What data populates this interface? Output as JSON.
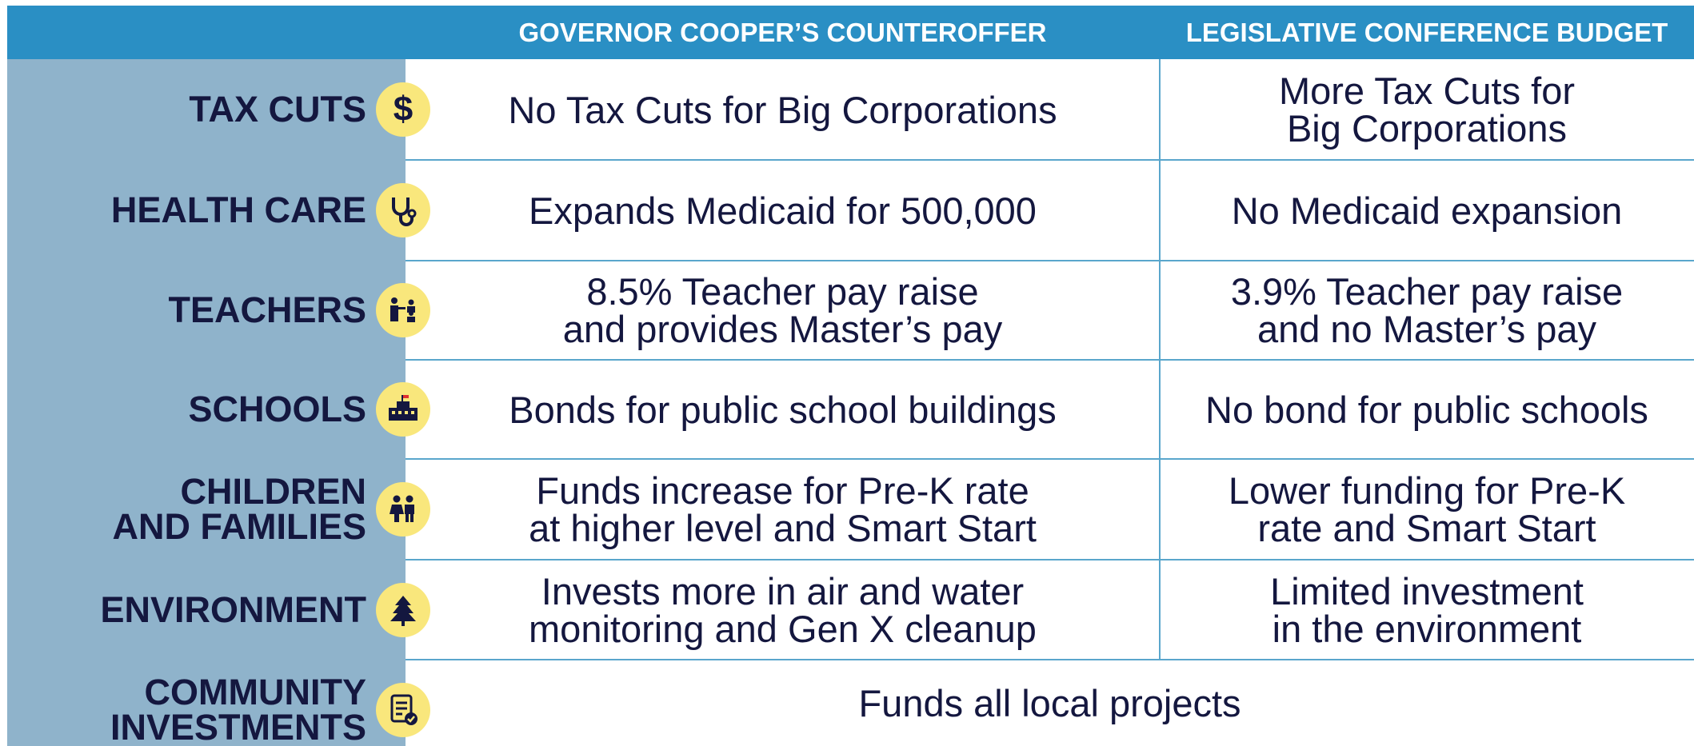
{
  "header": {
    "columns": [
      "GOVERNOR COOPER’S COUNTEROFFER",
      "LEGISLATIVE CONFERENCE BUDGET"
    ]
  },
  "rows": [
    {
      "label": [
        "TAX CUTS"
      ],
      "icon": "$",
      "governor": [
        "No Tax Cuts for Big Corporations"
      ],
      "legislative": [
        "More Tax Cuts for",
        "Big Corporations"
      ]
    },
    {
      "label": [
        "HEALTH CARE"
      ],
      "governor": [
        "Expands Medicaid for 500,000"
      ],
      "legislative": [
        "No Medicaid expansion"
      ]
    },
    {
      "label": [
        "TEACHERS"
      ],
      "governor": [
        "8.5% Teacher pay raise",
        "and provides Master’s pay"
      ],
      "legislative": [
        "3.9% Teacher pay raise",
        "and no Master’s pay"
      ]
    },
    {
      "label": [
        "SCHOOLS"
      ],
      "governor": [
        "Bonds for public school buildings"
      ],
      "legislative": [
        "No bond for public schools"
      ]
    },
    {
      "label": [
        "CHILDREN",
        "AND FAMILIES"
      ],
      "governor": [
        "Funds increase for Pre-K rate",
        "at higher level and Smart Start"
      ],
      "legislative": [
        "Lower funding for Pre-K",
        "rate and Smart Start"
      ]
    },
    {
      "label": [
        "ENVIRONMENT"
      ],
      "governor": [
        "Invests more in air and water",
        "monitoring and Gen X cleanup"
      ],
      "legislative": [
        "Limited investment",
        "in the environment"
      ]
    },
    {
      "label": [
        "COMMUNITY",
        "INVESTMENTS"
      ],
      "both": [
        "Funds all local projects"
      ]
    }
  ]
}
